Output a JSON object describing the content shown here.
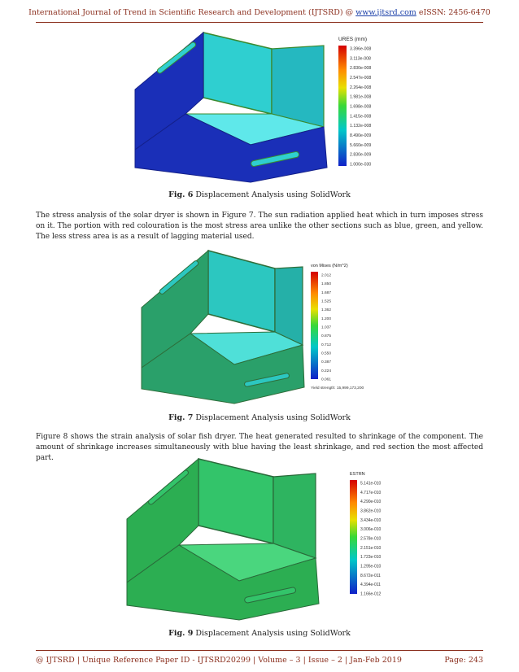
{
  "header": {
    "journal": "International Journal of Trend in Scientific Research and Development (IJTSRD) @ ",
    "link": "www.ijtsrd.com",
    "issn": " eISSN: 2456-6470"
  },
  "figures": [
    {
      "caption_label": "Fig. 6",
      "caption_text": " Displacement Analysis using SolidWork",
      "legend_title": "URES (mm)",
      "legend_values": [
        "3.396e-008",
        "3.113e-008",
        "2.830e-008",
        "2.547e-008",
        "2.264e-008",
        "1.981e-008",
        "1.698e-008",
        "1.415e-008",
        "1.132e-008",
        "8.490e-009",
        "5.660e-009",
        "2.830e-009",
        "1.000e-030"
      ],
      "colors": {
        "box": "#1a2fb8",
        "inner": "#2fcfd0",
        "floor": "#5fe8ea",
        "edge": "#3a8a30"
      }
    },
    {
      "caption_label": "Fig. 7",
      "caption_text": " Displacement Analysis using SolidWork",
      "legend_title": "von Mises (N/m^2)",
      "legend_values": [
        "2.012",
        "1.850",
        "1.687",
        "1.525",
        "1.362",
        "1.200",
        "1.037",
        "0.875",
        "0.712",
        "0.550",
        "0.387",
        "0.224",
        "0.061"
      ],
      "legend_note": "Yield strength: 15,999,173,200",
      "colors": {
        "box": "#2aa06a",
        "inner": "#2cc7c0",
        "floor": "#4fe0d8",
        "edge": "#2e6e3a"
      }
    },
    {
      "caption_label": "Fig. 9",
      "caption_text": " Displacement Analysis using SolidWork",
      "legend_title": "ESTRN",
      "legend_values": [
        "5.141e-010",
        "4.717e-010",
        "4.290e-010",
        "3.862e-010",
        "3.434e-010",
        "3.006e-010",
        "2.578e-010",
        "2.151e-010",
        "1.723e-010",
        "1.295e-010",
        "8.672e-011",
        "4.394e-011",
        "1.166e-012"
      ],
      "colors": {
        "box": "#2cae52",
        "inner": "#33c46a",
        "floor": "#4ad67e",
        "edge": "#2a6a3a"
      }
    }
  ],
  "paragraphs": {
    "p1": "The stress analysis of the solar dryer is shown in Figure 7. The sun radiation applied heat which in turn imposes stress on it. The portion with red colouration is the most stress area unlike the other sections such as blue, green, and yellow. The less stress area is as a result of lagging material used.",
    "p2": "Figure 8 shows the strain analysis of solar fish dryer. The heat generated resulted to shrinkage of the component. The amount of shrinkage increases simultaneously with blue having the least shrinkage, and red section the most affected part."
  },
  "footer": {
    "left": "@ IJTSRD | Unique Reference Paper ID - IJTSRD20299 | Volume – 3 | Issue – 2 | Jan-Feb 2019",
    "right": "Page: 243"
  }
}
